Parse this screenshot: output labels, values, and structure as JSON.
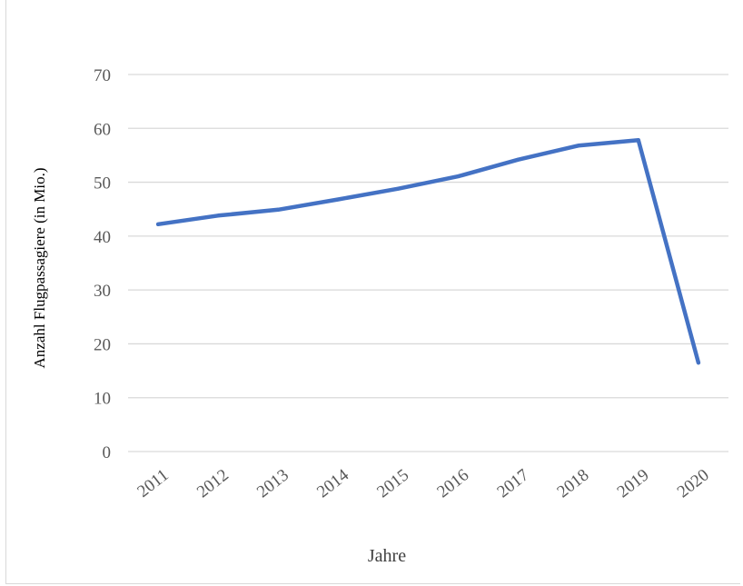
{
  "chart_data": {
    "type": "line",
    "title": "",
    "xlabel": "Jahre",
    "ylabel": "Anzahl Flugpassagiere (in Mio.)",
    "categories": [
      "2011",
      "2012",
      "2013",
      "2014",
      "2015",
      "2016",
      "2017",
      "2018",
      "2019",
      "2020"
    ],
    "series": [
      {
        "values": [
          42.2,
          43.8,
          44.9,
          46.8,
          48.8,
          51.1,
          54.2,
          56.8,
          57.8,
          16.5
        ],
        "color": "#4472c4"
      }
    ],
    "ylim": [
      0,
      70
    ],
    "yticks": [
      "0",
      "10",
      "20",
      "30",
      "40",
      "50",
      "60",
      "70"
    ],
    "grid": true,
    "legend": "none"
  }
}
